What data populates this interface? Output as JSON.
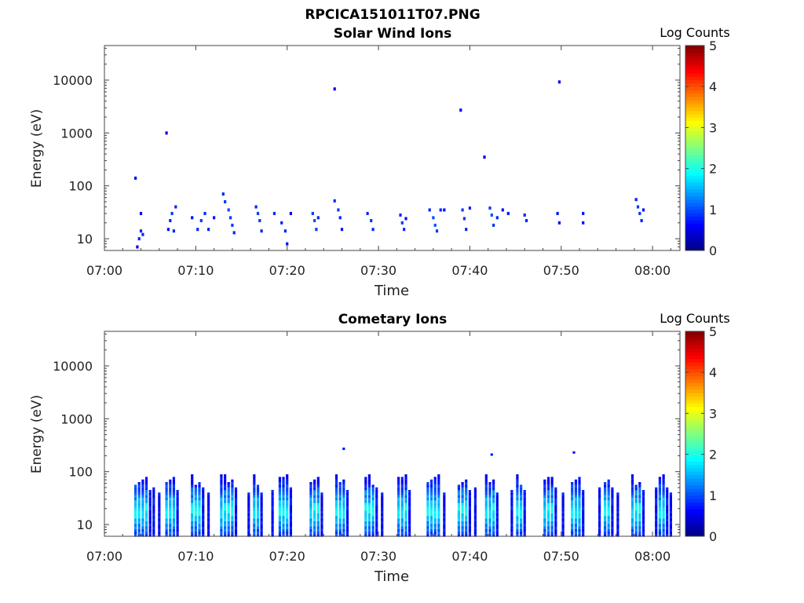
{
  "figure_title": "RPCICA151011T07.PNG",
  "chart_data": [
    {
      "type": "heatmap",
      "title": "Solar Wind Ions",
      "xlabel": "Time",
      "ylabel": "Energy (eV)",
      "x_range": [
        "07:00",
        "08:03"
      ],
      "y_range": [
        6,
        45000
      ],
      "y_scale": "log",
      "x_ticks": [
        "07:00",
        "07:10",
        "07:20",
        "07:30",
        "07:40",
        "07:50",
        "08:00"
      ],
      "y_ticks": [
        "10",
        "100",
        "1000",
        "10000"
      ],
      "colorbar": {
        "label": "Log Counts",
        "min": 0,
        "max": 5,
        "ticks": [
          "0",
          "1",
          "2",
          "3",
          "4",
          "5"
        ],
        "colormap": "jet"
      },
      "grid": false,
      "cells": [
        [
          "07:03.4",
          140,
          0.5
        ],
        [
          "07:03.6",
          7,
          0.6
        ],
        [
          "07:03.8",
          10,
          0.8
        ],
        [
          "07:04.0",
          14,
          0.8
        ],
        [
          "07:04.2",
          12,
          0.8
        ],
        [
          "07:04.0",
          30,
          0.6
        ],
        [
          "07:06.8",
          1000,
          0.6
        ],
        [
          "07:07.0",
          15,
          0.7
        ],
        [
          "07:07.2",
          22,
          0.8
        ],
        [
          "07:07.4",
          30,
          0.9
        ],
        [
          "07:07.8",
          40,
          0.8
        ],
        [
          "07:07.6",
          14,
          0.8
        ],
        [
          "07:09.6",
          25,
          0.7
        ],
        [
          "07:10.2",
          15,
          0.8
        ],
        [
          "07:10.6",
          22,
          0.9
        ],
        [
          "07:11.0",
          30,
          0.8
        ],
        [
          "07:11.4",
          15,
          0.8
        ],
        [
          "07:12.0",
          25,
          0.7
        ],
        [
          "07:13.0",
          70,
          0.8
        ],
        [
          "07:13.2",
          50,
          0.9
        ],
        [
          "07:13.6",
          35,
          1.0
        ],
        [
          "07:13.8",
          25,
          0.9
        ],
        [
          "07:14.0",
          18,
          0.9
        ],
        [
          "07:14.2",
          13,
          0.8
        ],
        [
          "07:16.6",
          40,
          0.8
        ],
        [
          "07:16.8",
          30,
          0.9
        ],
        [
          "07:17.0",
          22,
          0.9
        ],
        [
          "07:17.2",
          14,
          0.8
        ],
        [
          "07:18.6",
          30,
          0.8
        ],
        [
          "07:19.4",
          20,
          0.8
        ],
        [
          "07:19.8",
          14,
          0.8
        ],
        [
          "07:20.0",
          8,
          0.7
        ],
        [
          "07:20.4",
          30,
          0.6
        ],
        [
          "07:22.8",
          30,
          0.9
        ],
        [
          "07:23.0",
          22,
          1.0
        ],
        [
          "07:23.2",
          15,
          0.9
        ],
        [
          "07:23.4",
          25,
          0.8
        ],
        [
          "07:25.2",
          52,
          0.8
        ],
        [
          "07:25.6",
          35,
          0.9
        ],
        [
          "07:25.8",
          25,
          0.8
        ],
        [
          "07:26.0",
          15,
          0.7
        ],
        [
          "07:25.2",
          6800,
          0.6
        ],
        [
          "07:28.8",
          30,
          0.8
        ],
        [
          "07:29.2",
          22,
          0.9
        ],
        [
          "07:29.4",
          15,
          0.8
        ],
        [
          "07:32.4",
          28,
          0.8
        ],
        [
          "07:32.6",
          20,
          0.9
        ],
        [
          "07:32.8",
          15,
          0.8
        ],
        [
          "07:33.0",
          24,
          0.7
        ],
        [
          "07:35.6",
          35,
          0.8
        ],
        [
          "07:36.0",
          25,
          1.0
        ],
        [
          "07:36.2",
          18,
          1.0
        ],
        [
          "07:36.4",
          14,
          0.9
        ],
        [
          "07:36.8",
          35,
          0.8
        ],
        [
          "07:37.2",
          35,
          0.7
        ],
        [
          "07:39.0",
          2700,
          0.6
        ],
        [
          "07:39.2",
          35,
          0.9
        ],
        [
          "07:39.4",
          24,
          0.9
        ],
        [
          "07:39.6",
          15,
          0.8
        ],
        [
          "07:40.0",
          38,
          0.8
        ],
        [
          "07:41.6",
          350,
          0.6
        ],
        [
          "07:42.2",
          38,
          0.9
        ],
        [
          "07:42.4",
          28,
          1.0
        ],
        [
          "07:42.6",
          18,
          0.9
        ],
        [
          "07:43.0",
          25,
          0.8
        ],
        [
          "07:43.6",
          35,
          0.7
        ],
        [
          "07:44.2",
          30,
          0.7
        ],
        [
          "07:46.0",
          28,
          0.8
        ],
        [
          "07:46.2",
          22,
          0.8
        ],
        [
          "07:49.6",
          30,
          0.7
        ],
        [
          "07:49.8",
          20,
          0.7
        ],
        [
          "07:49.8",
          9200,
          0.6
        ],
        [
          "07:52.4",
          30,
          0.7
        ],
        [
          "07:52.4",
          20,
          0.7
        ],
        [
          "07:58.2",
          55,
          0.8
        ],
        [
          "07:58.4",
          40,
          0.9
        ],
        [
          "07:58.6",
          30,
          0.9
        ],
        [
          "07:58.8",
          22,
          0.8
        ],
        [
          "07:59.0",
          35,
          0.7
        ]
      ]
    },
    {
      "type": "heatmap",
      "title": "Cometary Ions",
      "xlabel": "Time",
      "ylabel": "Energy (eV)",
      "x_range": [
        "07:00",
        "08:03"
      ],
      "y_range": [
        6,
        45000
      ],
      "y_scale": "log",
      "x_ticks": [
        "07:00",
        "07:10",
        "07:20",
        "07:30",
        "07:40",
        "07:50",
        "08:00"
      ],
      "y_ticks": [
        "10",
        "100",
        "1000",
        "10000"
      ],
      "colorbar": {
        "label": "Log Counts",
        "min": 0,
        "max": 5,
        "ticks": [
          "0",
          "1",
          "2",
          "3",
          "4",
          "5"
        ],
        "colormap": "jet"
      },
      "grid": false,
      "columns": [
        [
          "07:03.4",
          1
        ],
        [
          "07:03.8",
          1
        ],
        [
          "07:04.2",
          1
        ],
        [
          "07:04.6",
          1
        ],
        [
          "07:05.0",
          0
        ],
        [
          "07:05.4",
          0
        ],
        [
          "07:06.0",
          0
        ],
        [
          "07:06.8",
          1
        ],
        [
          "07:07.2",
          1
        ],
        [
          "07:07.6",
          1
        ],
        [
          "07:08.0",
          0
        ],
        [
          "07:09.6",
          1
        ],
        [
          "07:10.0",
          1
        ],
        [
          "07:10.4",
          1
        ],
        [
          "07:10.8",
          0
        ],
        [
          "07:11.4",
          0
        ],
        [
          "07:12.8",
          1
        ],
        [
          "07:13.2",
          1
        ],
        [
          "07:13.6",
          1
        ],
        [
          "07:14.0",
          1
        ],
        [
          "07:14.4",
          0
        ],
        [
          "07:15.8",
          0
        ],
        [
          "07:16.4",
          1
        ],
        [
          "07:16.8",
          1
        ],
        [
          "07:17.2",
          0
        ],
        [
          "07:18.4",
          0
        ],
        [
          "07:19.2",
          1
        ],
        [
          "07:19.6",
          1
        ],
        [
          "07:20.0",
          1
        ],
        [
          "07:20.4",
          0
        ],
        [
          "07:22.6",
          1
        ],
        [
          "07:23.0",
          1
        ],
        [
          "07:23.4",
          1
        ],
        [
          "07:23.8",
          0
        ],
        [
          "07:25.4",
          1
        ],
        [
          "07:25.8",
          1
        ],
        [
          "07:26.2",
          1
        ],
        [
          "07:26.6",
          0
        ],
        [
          "07:28.6",
          1
        ],
        [
          "07:29.0",
          1
        ],
        [
          "07:29.4",
          1
        ],
        [
          "07:29.8",
          0
        ],
        [
          "07:30.4",
          0
        ],
        [
          "07:32.2",
          1
        ],
        [
          "07:32.6",
          1
        ],
        [
          "07:33.0",
          1
        ],
        [
          "07:33.4",
          0
        ],
        [
          "07:35.4",
          1
        ],
        [
          "07:35.8",
          1
        ],
        [
          "07:36.2",
          1
        ],
        [
          "07:36.6",
          1
        ],
        [
          "07:37.2",
          0
        ],
        [
          "07:38.8",
          1
        ],
        [
          "07:39.2",
          1
        ],
        [
          "07:39.6",
          1
        ],
        [
          "07:40.0",
          0
        ],
        [
          "07:40.6",
          0
        ],
        [
          "07:41.8",
          1
        ],
        [
          "07:42.2",
          1
        ],
        [
          "07:42.6",
          1
        ],
        [
          "07:43.0",
          0
        ],
        [
          "07:44.6",
          0
        ],
        [
          "07:45.2",
          1
        ],
        [
          "07:45.6",
          1
        ],
        [
          "07:46.0",
          0
        ],
        [
          "07:48.2",
          1
        ],
        [
          "07:48.6",
          1
        ],
        [
          "07:49.0",
          1
        ],
        [
          "07:49.4",
          0
        ],
        [
          "07:50.2",
          0
        ],
        [
          "07:51.2",
          1
        ],
        [
          "07:51.6",
          1
        ],
        [
          "07:52.0",
          1
        ],
        [
          "07:52.4",
          0
        ],
        [
          "07:54.2",
          0
        ],
        [
          "07:54.8",
          1
        ],
        [
          "07:55.2",
          1
        ],
        [
          "07:55.6",
          0
        ],
        [
          "07:56.2",
          0
        ],
        [
          "07:57.8",
          1
        ],
        [
          "07:58.2",
          1
        ],
        [
          "07:58.6",
          1
        ],
        [
          "07:59.0",
          0
        ],
        [
          "08:00.4",
          0
        ],
        [
          "08:00.8",
          1
        ],
        [
          "08:01.2",
          1
        ],
        [
          "08:01.6",
          0
        ],
        [
          "08:02.0",
          0
        ]
      ],
      "isolated_points": [
        [
          "07:26.2",
          270
        ],
        [
          "07:42.4",
          210
        ],
        [
          "07:51.4",
          230
        ]
      ]
    }
  ]
}
